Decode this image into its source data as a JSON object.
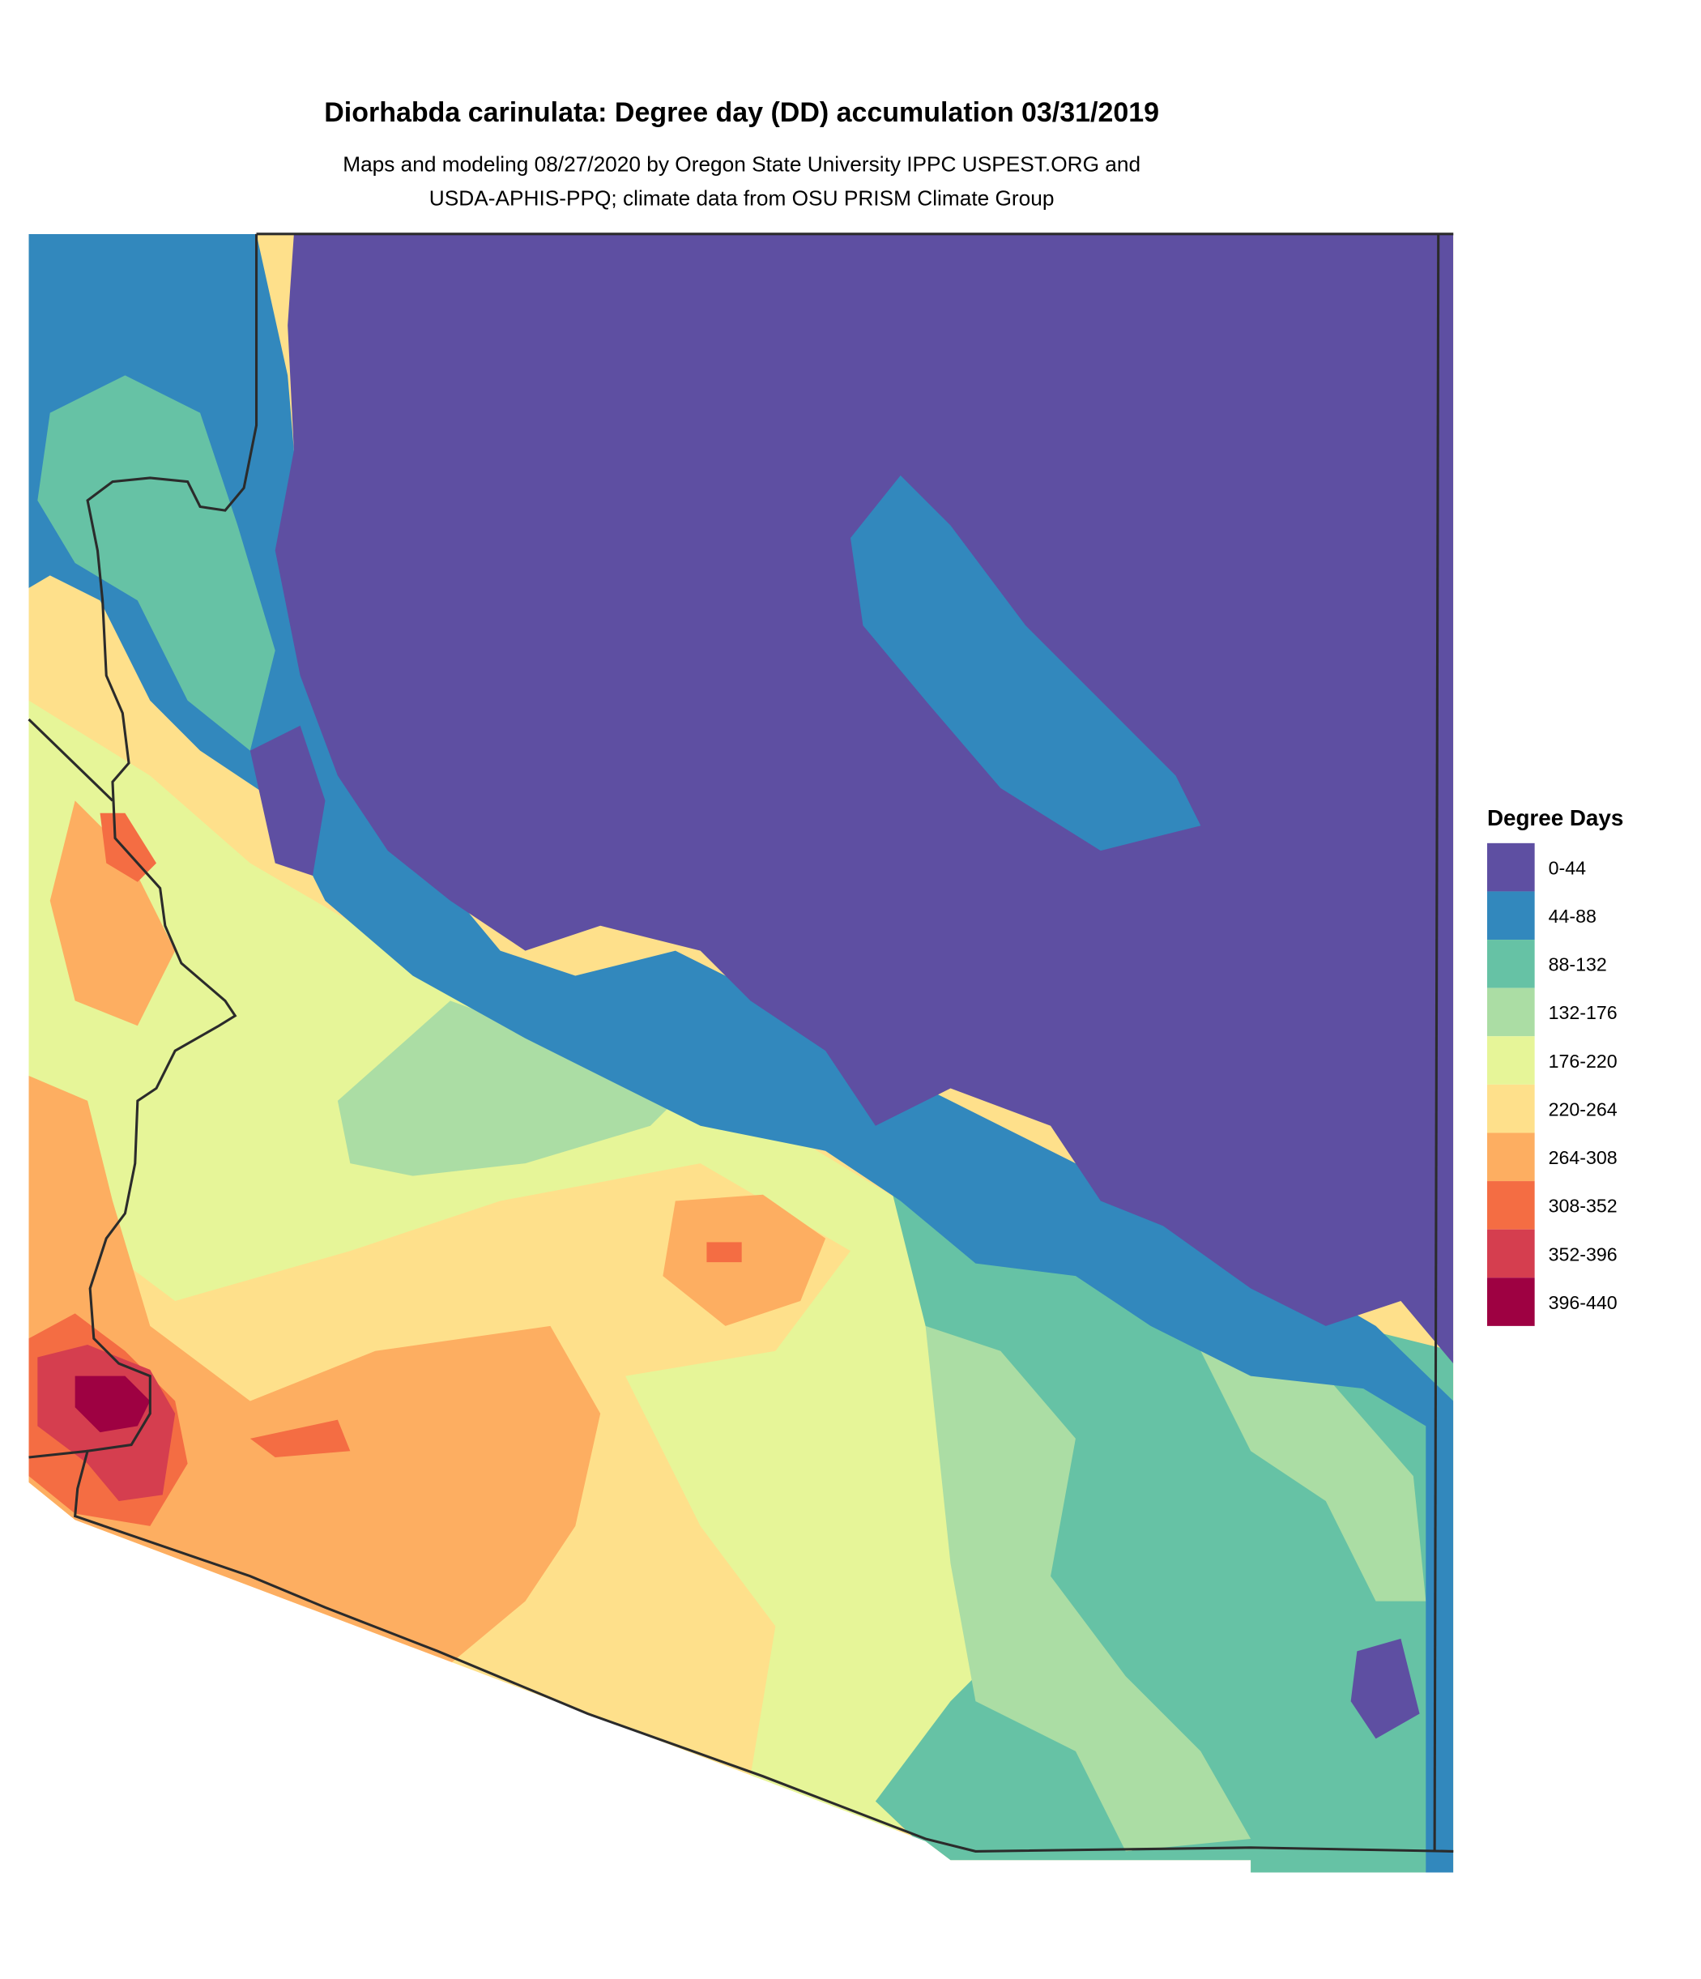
{
  "title": "Diorhabda carinulata: Degree day (DD) accumulation 03/31/2019",
  "subtitle_line1": "Maps and modeling 08/27/2020 by Oregon State University IPPC USPEST.ORG and",
  "subtitle_line2": "USDA-APHIS-PPQ; climate data from OSU PRISM Climate Group",
  "legend": {
    "title": "Degree Days",
    "items": [
      {
        "label": "0-44",
        "color": "#5E4FA2"
      },
      {
        "label": "44-88",
        "color": "#3288BD"
      },
      {
        "label": "88-132",
        "color": "#66C2A5"
      },
      {
        "label": "132-176",
        "color": "#ABDDA4"
      },
      {
        "label": "176-220",
        "color": "#E6F598"
      },
      {
        "label": "220-264",
        "color": "#FEE08B"
      },
      {
        "label": "264-308",
        "color": "#FDAE61"
      },
      {
        "label": "308-352",
        "color": "#F46D43"
      },
      {
        "label": "352-396",
        "color": "#D53E4F"
      },
      {
        "label": "396-440",
        "color": "#9E0142"
      }
    ]
  }
}
